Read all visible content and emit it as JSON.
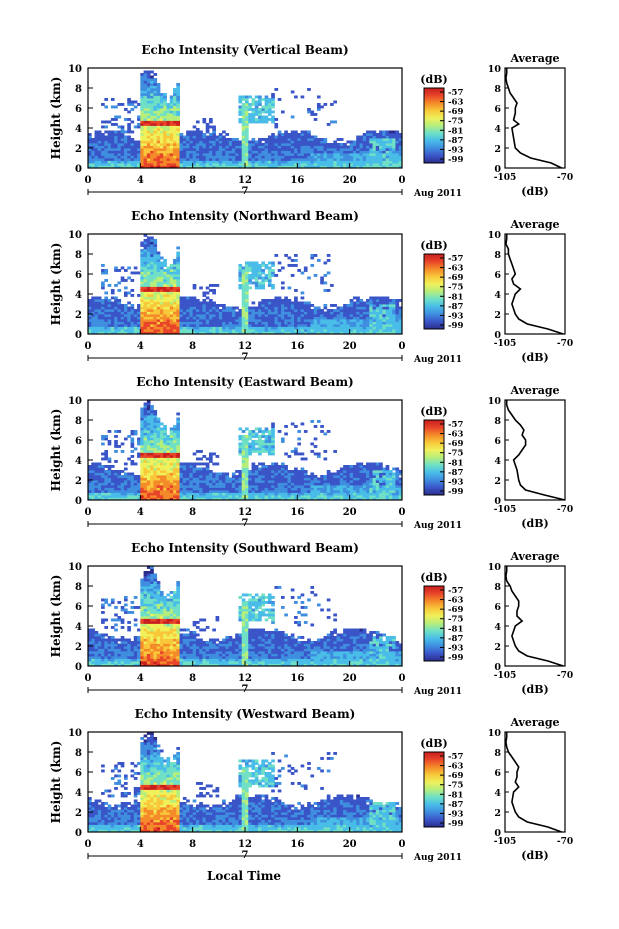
{
  "chart_data": {
    "type": "heatmap",
    "colorbar": {
      "title": "(dB)",
      "tick_labels": [
        "-57",
        "-63",
        "-69",
        "-75",
        "-81",
        "-87",
        "-93",
        "-99"
      ],
      "colors": [
        "#2b2d8c",
        "#3a55c8",
        "#3f8ee0",
        "#49bde8",
        "#6fe0c6",
        "#b6ee7c",
        "#f0f05a",
        "#f8c83a",
        "#f48a2a",
        "#e8442a",
        "#c81e1e"
      ]
    },
    "x_ticks": [
      "0",
      "4",
      "8",
      "12",
      "16",
      "20",
      "0"
    ],
    "y_ticks": [
      "0",
      "2",
      "4",
      "6",
      "8",
      "10"
    ],
    "ylabel": "Height (km)",
    "date_label": "Aug 2011",
    "date_marker": "7",
    "xlabel": "Local Time",
    "xlim": [
      0,
      24
    ],
    "ylim": [
      0,
      10
    ],
    "average": {
      "title": "Average",
      "xlabel": "(dB)",
      "x_ticks": [
        "-105",
        "-70"
      ],
      "xlim": [
        -105,
        -70
      ],
      "y_ticks": [
        "0",
        "2",
        "4",
        "6",
        "8",
        "10"
      ]
    },
    "panels": [
      {
        "title": "Echo Intensity (Vertical Beam)",
        "profile": [
          [
            0,
            -72
          ],
          [
            0.5,
            -78
          ],
          [
            1,
            -90
          ],
          [
            1.5,
            -96
          ],
          [
            2,
            -99
          ],
          [
            3,
            -100
          ],
          [
            4,
            -101
          ],
          [
            4.4,
            -97
          ],
          [
            4.8,
            -100
          ],
          [
            5.5,
            -99
          ],
          [
            6,
            -99
          ],
          [
            6.5,
            -98
          ],
          [
            7,
            -100
          ],
          [
            7.5,
            -102
          ],
          [
            8,
            -103
          ],
          [
            8.5,
            -104
          ],
          [
            9,
            -104.5
          ],
          [
            9.5,
            -104
          ],
          [
            10,
            -104
          ]
        ]
      },
      {
        "title": "Echo Intensity (Northward Beam)",
        "profile": [
          [
            0,
            -71
          ],
          [
            0.5,
            -80
          ],
          [
            1,
            -92
          ],
          [
            1.5,
            -97
          ],
          [
            2,
            -99
          ],
          [
            3,
            -101
          ],
          [
            4,
            -99
          ],
          [
            4.5,
            -96
          ],
          [
            5,
            -100
          ],
          [
            5.5,
            -101
          ],
          [
            6,
            -99
          ],
          [
            6.5,
            -100
          ],
          [
            7,
            -101
          ],
          [
            7.5,
            -102
          ],
          [
            8,
            -103
          ],
          [
            8.5,
            -103
          ],
          [
            9,
            -104.5
          ],
          [
            9.5,
            -104
          ],
          [
            10,
            -104
          ]
        ]
      },
      {
        "title": "Echo Intensity (Eastward Beam)",
        "profile": [
          [
            0,
            -70
          ],
          [
            0.5,
            -82
          ],
          [
            1,
            -93
          ],
          [
            1.5,
            -96
          ],
          [
            2,
            -97
          ],
          [
            3,
            -98
          ],
          [
            4,
            -100
          ],
          [
            4.5,
            -97
          ],
          [
            5,
            -95
          ],
          [
            5.5,
            -93
          ],
          [
            6,
            -93
          ],
          [
            6.5,
            -95
          ],
          [
            7,
            -94
          ],
          [
            7.5,
            -96
          ],
          [
            8,
            -99
          ],
          [
            8.5,
            -101
          ],
          [
            9,
            -103
          ],
          [
            9.5,
            -104
          ],
          [
            10,
            -104
          ]
        ]
      },
      {
        "title": "Echo Intensity (Southward Beam)",
        "profile": [
          [
            0,
            -71
          ],
          [
            0.5,
            -80
          ],
          [
            1,
            -92
          ],
          [
            1.5,
            -97
          ],
          [
            2,
            -99
          ],
          [
            3,
            -101
          ],
          [
            4,
            -99
          ],
          [
            4.5,
            -95
          ],
          [
            5,
            -98
          ],
          [
            5.5,
            -98
          ],
          [
            6,
            -97
          ],
          [
            6.5,
            -97
          ],
          [
            7,
            -99
          ],
          [
            7.5,
            -101
          ],
          [
            8,
            -102
          ],
          [
            8.5,
            -104
          ],
          [
            9,
            -104.5
          ],
          [
            9.5,
            -104
          ],
          [
            10,
            -104
          ]
        ]
      },
      {
        "title": "Echo Intensity (Westward Beam)",
        "profile": [
          [
            0,
            -72
          ],
          [
            0.5,
            -80
          ],
          [
            1,
            -92
          ],
          [
            1.5,
            -97
          ],
          [
            2,
            -99
          ],
          [
            3,
            -101
          ],
          [
            4,
            -100
          ],
          [
            4.5,
            -97
          ],
          [
            5,
            -99
          ],
          [
            5.5,
            -98
          ],
          [
            6,
            -98
          ],
          [
            6.5,
            -97
          ],
          [
            7,
            -99
          ],
          [
            7.5,
            -101
          ],
          [
            8,
            -103
          ],
          [
            8.5,
            -104
          ],
          [
            9,
            -104.5
          ],
          [
            9.5,
            -104
          ],
          [
            10,
            -104
          ]
        ]
      }
    ]
  }
}
